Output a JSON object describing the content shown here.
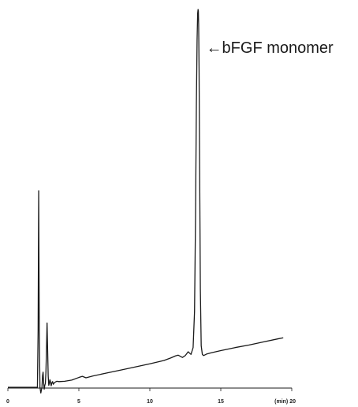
{
  "chart_data": {
    "type": "line",
    "xlabel": "",
    "ylabel": "",
    "x_unit": "(min)",
    "xlim": [
      0,
      20
    ],
    "ylim": [
      0,
      100
    ],
    "x_ticks": [
      0,
      5,
      10,
      15,
      20
    ],
    "grid": false,
    "annotation": "←bFGF monomer",
    "annotation_x": 13.42,
    "line_color": "#1a1a1a",
    "series": [
      {
        "x": [
          0,
          2.0,
          2.08,
          2.13,
          2.17,
          2.21,
          2.26,
          2.32,
          2.4,
          2.44,
          2.48,
          2.52,
          2.56,
          2.6,
          2.64,
          2.68,
          2.72,
          2.76,
          2.8,
          2.84,
          2.88,
          2.92,
          2.96,
          3.0,
          3.05,
          3.1,
          3.15,
          3.2,
          3.3,
          3.45,
          3.6,
          4.0,
          4.5,
          5.0,
          5.25,
          5.5,
          6.0,
          7.0,
          8.0,
          9.0,
          10.0,
          11.0,
          11.5,
          11.8,
          12.0,
          12.3,
          12.5,
          12.7,
          12.9,
          13.05,
          13.15,
          13.22,
          13.28,
          13.33,
          13.37,
          13.4,
          13.42,
          13.44,
          13.47,
          13.51,
          13.56,
          13.62,
          13.7,
          13.78,
          13.9,
          14.0,
          14.3,
          15.0,
          16.0,
          17.0,
          18.0,
          19.0,
          19.4
        ],
        "y": [
          0,
          0,
          0,
          15,
          52,
          15,
          0,
          -1.5,
          0,
          3,
          4,
          1,
          -0.5,
          0.5,
          1,
          4,
          10,
          17,
          10,
          3,
          0.5,
          1,
          2,
          1.5,
          0.4,
          1.2,
          1.5,
          0.8,
          1.3,
          1.6,
          1.5,
          1.6,
          1.9,
          2.6,
          2.9,
          2.5,
          3.0,
          3.8,
          4.6,
          5.4,
          6.2,
          7.1,
          7.8,
          8.3,
          8.5,
          7.9,
          8.4,
          9.4,
          8.7,
          10.5,
          20,
          45,
          75,
          92,
          99,
          100,
          99.5,
          96,
          84,
          58,
          26,
          11,
          8.7,
          8.4,
          8.6,
          8.8,
          9.1,
          9.7,
          10.5,
          11.2,
          12.0,
          12.8,
          13.1
        ]
      }
    ]
  }
}
